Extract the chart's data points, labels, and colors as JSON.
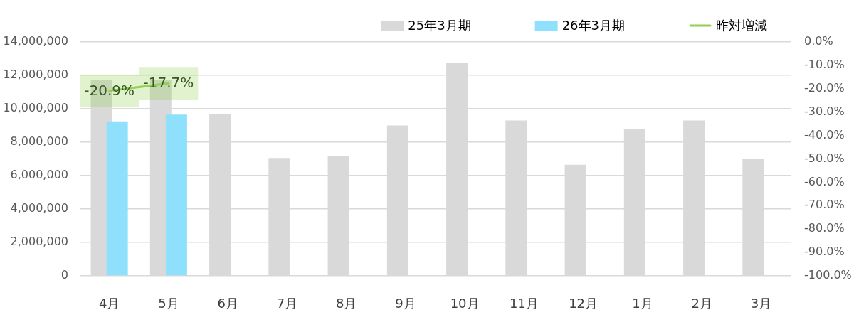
{
  "chart_data": {
    "type": "bar",
    "categories": [
      "4月",
      "5月",
      "6月",
      "7月",
      "8月",
      "9月",
      "10月",
      "11月",
      "12月",
      "1月",
      "2月",
      "3月"
    ],
    "series": [
      {
        "name": "25年3月期",
        "color": "#d9d9d9",
        "values": [
          11700000,
          11700000,
          9700000,
          7050000,
          7150000,
          9000000,
          12750000,
          9300000,
          6650000,
          8800000,
          9300000,
          7000000
        ]
      },
      {
        "name": "26年3月期",
        "color": "#8ee0fd",
        "values": [
          9250000,
          9650000,
          null,
          null,
          null,
          null,
          null,
          null,
          null,
          null,
          null,
          null
        ]
      },
      {
        "name": "昨対増減",
        "type": "line",
        "axis": "y2",
        "color": "#92d050",
        "values": [
          -20.9,
          -17.7,
          null,
          null,
          null,
          null,
          null,
          null,
          null,
          null,
          null,
          null
        ],
        "value_labels": [
          "-20.9%",
          "-17.7%",
          null,
          null,
          null,
          null,
          null,
          null,
          null,
          null,
          null,
          null
        ]
      }
    ],
    "ylim": [
      0,
      14000000
    ],
    "yticks": [
      {
        "value": 0,
        "label": "0"
      },
      {
        "value": 2000000,
        "label": "2,000,000"
      },
      {
        "value": 4000000,
        "label": "4,000,000"
      },
      {
        "value": 6000000,
        "label": "6,000,000"
      },
      {
        "value": 8000000,
        "label": "8,000,000"
      },
      {
        "value": 10000000,
        "label": "10,000,000"
      },
      {
        "value": 12000000,
        "label": "12,000,000"
      },
      {
        "value": 14000000,
        "label": "14,000,000"
      }
    ],
    "y2lim": [
      -100,
      0
    ],
    "y2ticks": [
      {
        "value": -100,
        "label": "-100.0%"
      },
      {
        "value": -90,
        "label": "-90.0%"
      },
      {
        "value": -80,
        "label": "-80.0%"
      },
      {
        "value": -70,
        "label": "-70.0%"
      },
      {
        "value": -60,
        "label": "-60.0%"
      },
      {
        "value": -50,
        "label": "-50.0%"
      },
      {
        "value": -40,
        "label": "-40.0%"
      },
      {
        "value": -30,
        "label": "-30.0%"
      },
      {
        "value": -20,
        "label": "-20.0%"
      },
      {
        "value": -10,
        "label": "-10.0%"
      },
      {
        "value": 0,
        "label": "0.0%"
      }
    ],
    "grid": "y",
    "legend": "top right",
    "marker": "none"
  }
}
